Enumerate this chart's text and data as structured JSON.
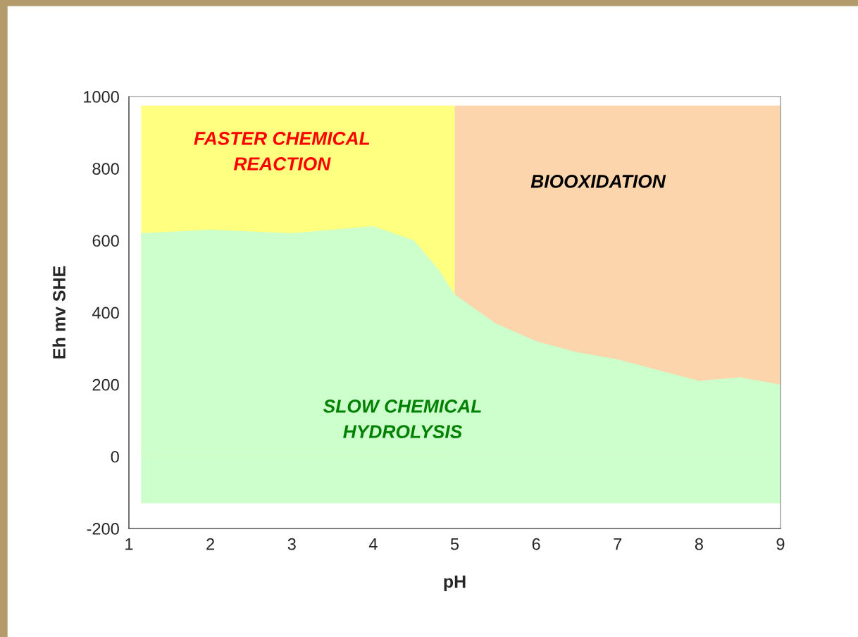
{
  "chart_data": {
    "type": "area",
    "xlabel": "pH",
    "ylabel": "Eh mv SHE",
    "xlim": [
      1,
      9
    ],
    "xticks": [
      1,
      2,
      3,
      4,
      5,
      6,
      7,
      8,
      9
    ],
    "ylim": [
      -200,
      1000
    ],
    "yticks": [
      -200,
      0,
      200,
      400,
      600,
      800,
      1000
    ],
    "grid": false,
    "legend": false,
    "series": [
      {
        "color": "#ffff80",
        "x": [
          1.15,
          5
        ],
        "values": [
          975,
          975
        ]
      },
      {
        "color": "#fcd5ac",
        "x": [
          5,
          9
        ],
        "values": [
          975,
          975
        ]
      },
      {
        "color": "#ccffcc",
        "x": [
          1.15,
          2,
          3,
          4,
          4.5,
          4.8,
          5,
          5.5,
          6,
          6.5,
          7,
          7.5,
          8,
          8.5,
          9
        ],
        "values": [
          620,
          630,
          620,
          640,
          600,
          520,
          450,
          370,
          320,
          290,
          270,
          240,
          210,
          220,
          200
        ]
      },
      {
        "color": "#ccffcc",
        "x": [
          1.15,
          9
        ],
        "values": [
          -130,
          -130
        ]
      }
    ],
    "annotations": [
      "FASTER CHEMICAL\nREACTION",
      "BIOOXIDATION",
      "SLOW CHEMICAL\nHYDROLYSIS"
    ]
  }
}
